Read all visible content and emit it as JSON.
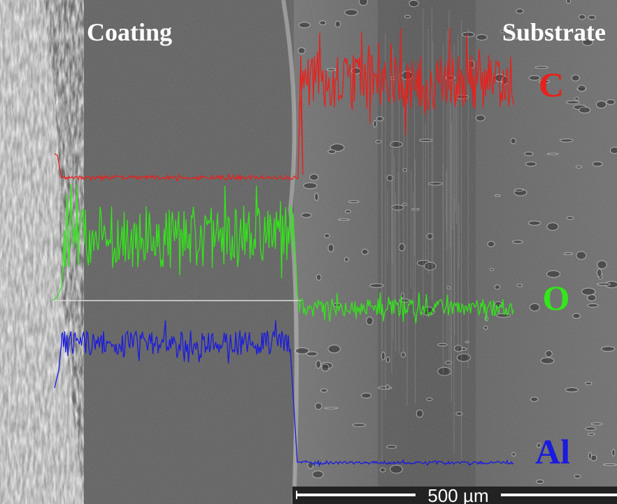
{
  "labels": {
    "coating": "Coating",
    "substrate": "Substrate"
  },
  "elements": [
    {
      "symbol": "C",
      "color": "#e8201c"
    },
    {
      "symbol": "O",
      "color": "#33e61a"
    },
    {
      "symbol": "Al",
      "color": "#1a1ae0"
    }
  ],
  "scale_bar": "500 µm"
}
